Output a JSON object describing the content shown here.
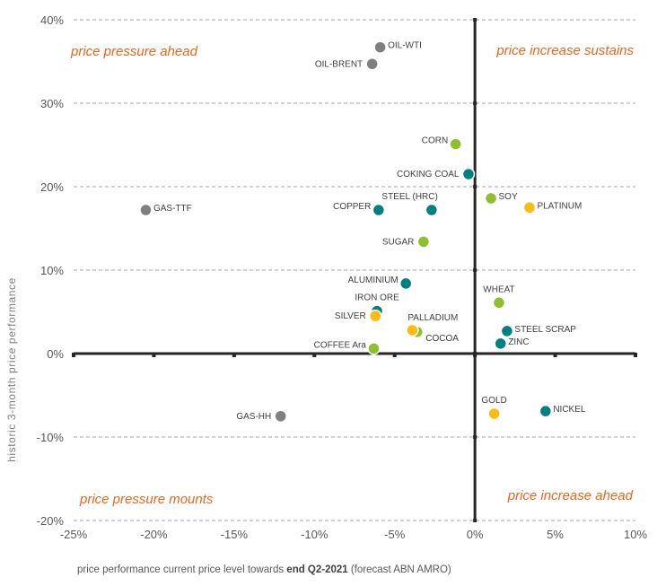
{
  "chart_data": {
    "type": "scatter",
    "title": "",
    "xlabel_parts": [
      "price performance  current price level  towards ",
      "end Q2-2021",
      " (forecast ABN AMRO)"
    ],
    "ylabel": "historic 3-month  price performance",
    "xlim": [
      -25,
      10
    ],
    "ylim": [
      -20,
      40
    ],
    "x_ticks": [
      -25,
      -20,
      -15,
      -10,
      -5,
      0,
      5,
      10
    ],
    "x_tick_labels": [
      "-25%",
      "-20%",
      "-15%",
      "-10%",
      "-5%",
      "0%",
      "5%",
      "10%"
    ],
    "y_ticks": [
      40,
      30,
      20,
      10,
      0,
      -10,
      -20
    ],
    "y_tick_labels": [
      "40%",
      "30%",
      "20%",
      "10%",
      "0%",
      "-10%",
      "-20%"
    ],
    "grid": "horizontal-dashed",
    "quadrant_labels": {
      "top_left": "price pressure ahead",
      "top_right": "price increase sustains",
      "bottom_left": "price pressure mounts",
      "bottom_right": "price increase ahead"
    },
    "category_colors": {
      "energy": "#7f7f7f",
      "metals": "#00807f",
      "agri": "#8dbf2e",
      "precious": "#fbbb13"
    },
    "points": [
      {
        "name": "OIL-WTI",
        "x": -5.9,
        "y": 36.7,
        "group": "energy",
        "label_pos": "right"
      },
      {
        "name": "OIL-BRENT",
        "x": -6.4,
        "y": 34.7,
        "group": "energy",
        "label_pos": "left"
      },
      {
        "name": "CORN",
        "x": -1.2,
        "y": 25.1,
        "group": "agri",
        "label_pos": "left-up"
      },
      {
        "name": "COKING COAL",
        "x": -0.4,
        "y": 21.5,
        "group": "metals",
        "label_pos": "left"
      },
      {
        "name": "SOY",
        "x": 1.0,
        "y": 18.6,
        "group": "agri",
        "label_pos": "right"
      },
      {
        "name": "PLATINUM",
        "x": 3.4,
        "y": 17.5,
        "group": "precious",
        "label_pos": "right"
      },
      {
        "name": "GAS-TTF",
        "x": -20.5,
        "y": 17.2,
        "group": "energy",
        "label_pos": "right"
      },
      {
        "name": "COPPER",
        "x": -6.0,
        "y": 17.2,
        "group": "metals",
        "label_pos": "left-up"
      },
      {
        "name": "STEEL (HRC)",
        "x": -2.7,
        "y": 17.2,
        "group": "metals",
        "label_pos": "above-left"
      },
      {
        "name": "SUGAR",
        "x": -3.2,
        "y": 13.4,
        "group": "agri",
        "label_pos": "left"
      },
      {
        "name": "ALUMINIUM",
        "x": -4.3,
        "y": 8.4,
        "group": "metals",
        "label_pos": "left-up"
      },
      {
        "name": "WHEAT",
        "x": 1.5,
        "y": 6.1,
        "group": "agri",
        "label_pos": "above"
      },
      {
        "name": "IRON ORE",
        "x": -6.1,
        "y": 5.1,
        "group": "metals",
        "label_pos": "above"
      },
      {
        "name": "SILVER",
        "x": -6.2,
        "y": 4.5,
        "group": "precious",
        "label_pos": "left"
      },
      {
        "name": "STEEL SCRAP",
        "x": 2.0,
        "y": 2.7,
        "group": "metals",
        "label_pos": "right"
      },
      {
        "name": "COCOA",
        "x": -3.6,
        "y": 2.6,
        "group": "agri",
        "label_pos": "right-down"
      },
      {
        "name": "PALLADIUM",
        "x": -3.9,
        "y": 2.8,
        "group": "precious",
        "label_pos": "above-right"
      },
      {
        "name": "ZINC",
        "x": 1.6,
        "y": 1.2,
        "group": "metals",
        "label_pos": "right"
      },
      {
        "name": "COFFEE Ara",
        "x": -6.3,
        "y": 0.6,
        "group": "agri",
        "label_pos": "left-up"
      },
      {
        "name": "GOLD",
        "x": 1.2,
        "y": -7.2,
        "group": "precious",
        "label_pos": "above"
      },
      {
        "name": "NICKEL",
        "x": 4.4,
        "y": -6.9,
        "group": "metals",
        "label_pos": "right"
      },
      {
        "name": "GAS-HH",
        "x": -12.1,
        "y": -7.5,
        "group": "energy",
        "label_pos": "left"
      }
    ]
  }
}
